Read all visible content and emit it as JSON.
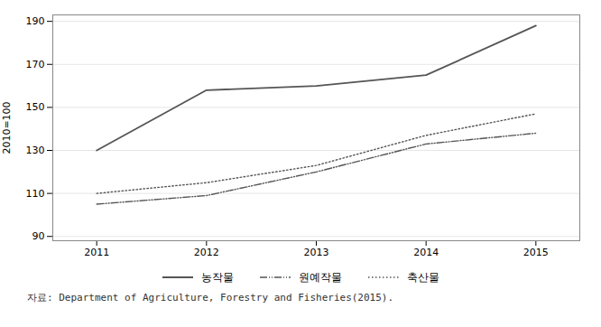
{
  "chart_data": {
    "type": "line",
    "ylabel": "2010=100",
    "source": "자료: Department of Agriculture, Forestry and Fisheries(2015).",
    "x": [
      2011,
      2012,
      2013,
      2014,
      2015
    ],
    "series": [
      {
        "name": "농작물",
        "color": "#555555",
        "line_style": "solid",
        "values": [
          130,
          158,
          160,
          165,
          188
        ]
      },
      {
        "name": "원예작물",
        "color": "#555555",
        "line_style": "dashdot",
        "values": [
          105,
          109,
          120,
          133,
          138
        ]
      },
      {
        "name": "축산물",
        "color": "#555555",
        "line_style": "dotted",
        "values": [
          110,
          115,
          123,
          137,
          147
        ]
      }
    ],
    "xlim": [
      2010.6,
      2015.4
    ],
    "xticks": [
      2011,
      2012,
      2013,
      2014,
      2015
    ],
    "ylim": [
      88,
      193
    ],
    "yticks": [
      90,
      110,
      130,
      150,
      170,
      190
    ],
    "grid": "y",
    "legend": "bottom"
  }
}
